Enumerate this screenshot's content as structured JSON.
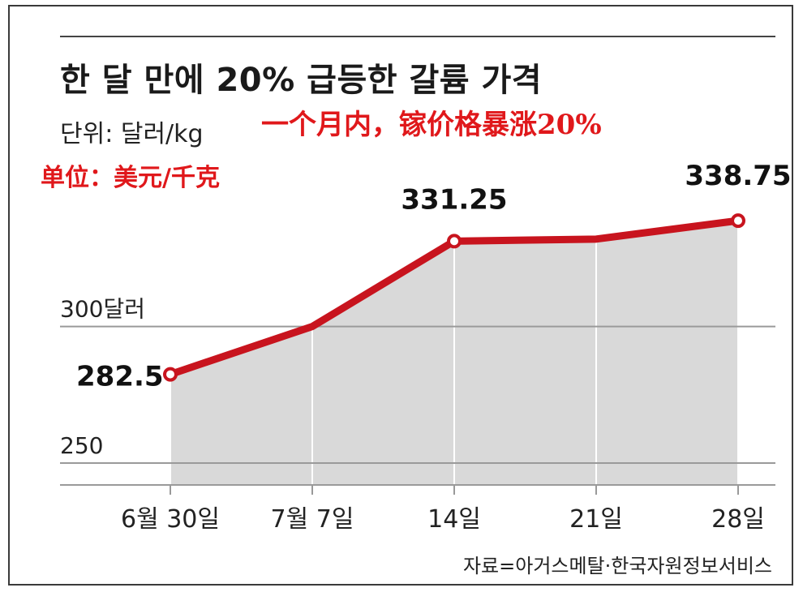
{
  "chart_data": {
    "type": "area",
    "title": "한 달 만에 20% 급등한 갈륨 가격",
    "unit": "단위: 달러/kg",
    "annotation_title_zh": "一个月内，镓价格暴涨20%",
    "annotation_unit_zh": "单位：美元/千克",
    "source": "자료=아거스메탈·한국자원정보서비스",
    "categories": [
      "6월 30일",
      "7월 7일",
      "14일",
      "21일",
      "28일"
    ],
    "values": [
      282.5,
      300,
      331.25,
      332,
      338.75
    ],
    "data_labels": [
      {
        "index": 0,
        "text": "282.5"
      },
      {
        "index": 2,
        "text": "331.25"
      },
      {
        "index": 4,
        "text": "338.75"
      }
    ],
    "marked_points": [
      0,
      2,
      4
    ],
    "y_ticks": [
      {
        "value": 250,
        "label": "250"
      },
      {
        "value": 300,
        "label": "300달러"
      }
    ],
    "ylim": [
      242,
      375
    ],
    "grid": "horizontal-at-ticks",
    "legend": "none",
    "colors": {
      "line": "#c8141e",
      "fill": "#d9d9d9",
      "marker_fill": "#ffffff"
    }
  }
}
